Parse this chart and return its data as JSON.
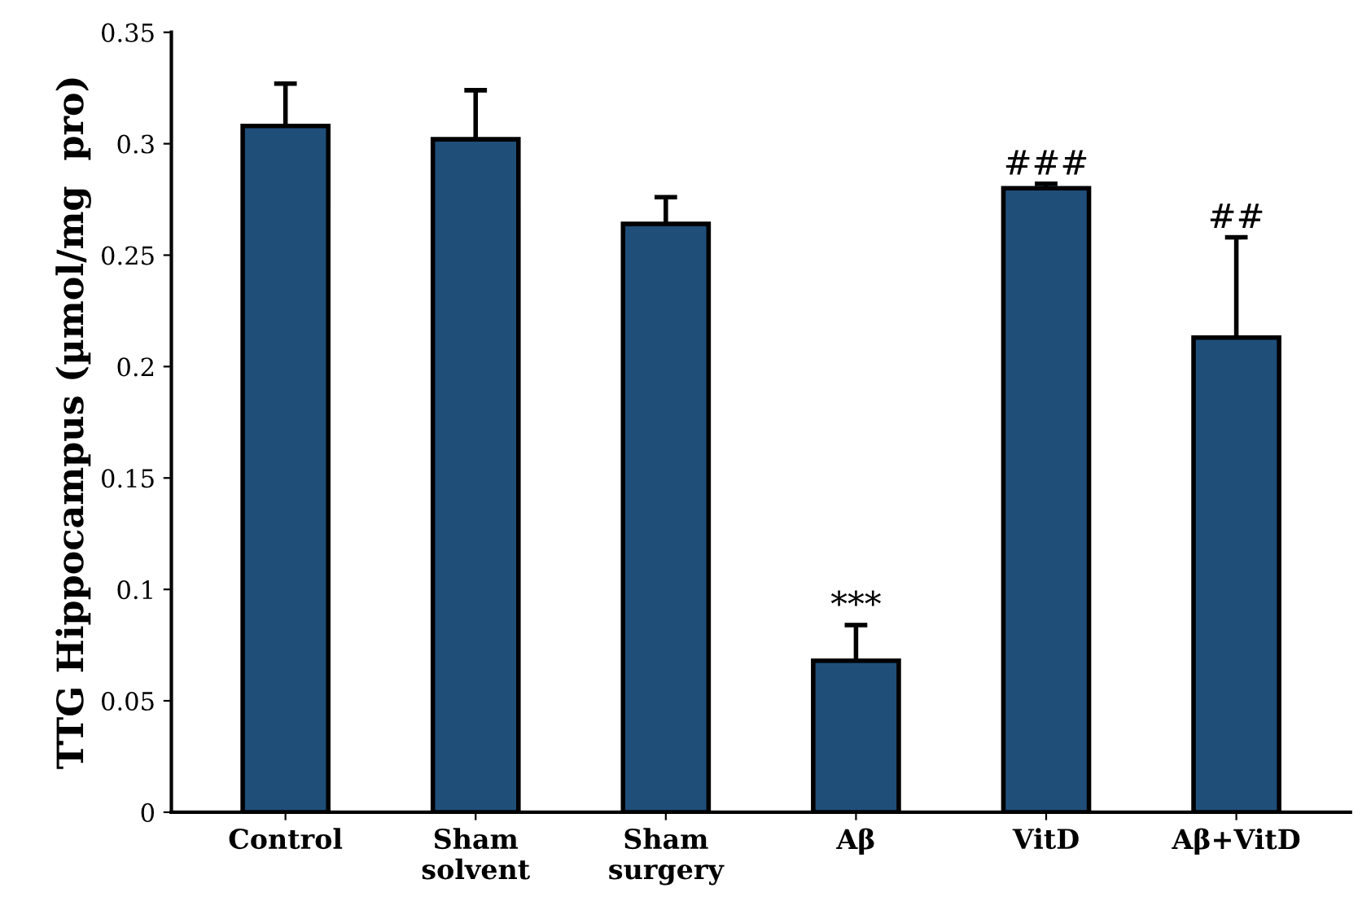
{
  "chart_data": {
    "type": "bar",
    "ylabel": "TTG Hippocampus (µmol/mg  pro)",
    "categories": [
      "Control",
      "Sham\nsolvent",
      "Sham\nsurgery",
      "Aβ",
      "VitD",
      "Aβ+VitD"
    ],
    "values": [
      0.308,
      0.302,
      0.264,
      0.068,
      0.28,
      0.213
    ],
    "errors": [
      0.019,
      0.022,
      0.012,
      0.016,
      0.002,
      0.045
    ],
    "color": "#1f4e79",
    "ylim": [
      0,
      0.35
    ],
    "yticks": [
      {
        "value": 0,
        "label": "0"
      },
      {
        "value": 0.05,
        "label": "0.05"
      },
      {
        "value": 0.1,
        "label": "0.1"
      },
      {
        "value": 0.15,
        "label": "0.15"
      },
      {
        "value": 0.2,
        "label": "0.2"
      },
      {
        "value": 0.25,
        "label": "0.25"
      },
      {
        "value": 0.3,
        "label": "0.3"
      },
      {
        "value": 0.35,
        "label": "0.35"
      }
    ],
    "grid": false,
    "annotations": [
      {
        "text": "***",
        "x": "Aβ",
        "y": 0.084
      },
      {
        "text": "###",
        "x": "VitD",
        "y": 0.282
      },
      {
        "text": "##",
        "x": "Aβ+VitD",
        "y": 0.258
      }
    ]
  }
}
